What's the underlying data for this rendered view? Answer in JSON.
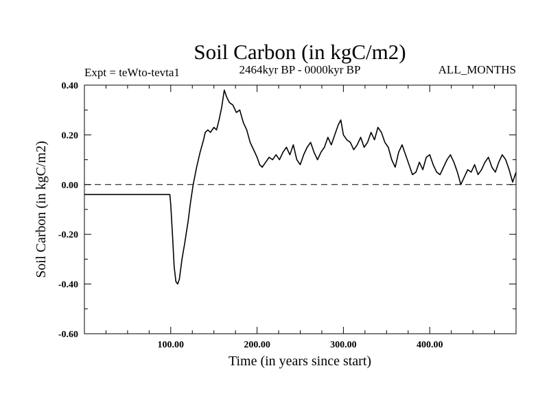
{
  "chart_data": {
    "type": "line",
    "title": "Soil Carbon (in kgC/m2)",
    "subtitle": "2464kyr BP - 0000kyr BP",
    "experiment": "Expt = teWto-tevta1",
    "period": "ALL_MONTHS",
    "xlabel": "Time (in years since start)",
    "ylabel": "Soil Carbon (in kgC/m2)",
    "xlim": [
      0,
      500
    ],
    "ylim": [
      -0.6,
      0.4
    ],
    "x_ticks": [
      {
        "value": 100,
        "label": "100.00"
      },
      {
        "value": 200,
        "label": "200.00"
      },
      {
        "value": 300,
        "label": "300.00"
      },
      {
        "value": 400,
        "label": "400.00"
      }
    ],
    "y_ticks": [
      {
        "value": 0.4,
        "label": "0.40"
      },
      {
        "value": 0.2,
        "label": "0.20"
      },
      {
        "value": 0.0,
        "label": "0.00"
      },
      {
        "value": -0.2,
        "label": "-0.20"
      },
      {
        "value": -0.4,
        "label": "-0.40"
      },
      {
        "value": -0.6,
        "label": "-0.60"
      }
    ],
    "zero_line": {
      "value": 0.0,
      "style": "dashed"
    },
    "series": [
      {
        "name": "Soil Carbon",
        "color": "#000000",
        "x": [
          0,
          50,
          99,
          100,
          102,
          104,
          106,
          108,
          110,
          113,
          116,
          120,
          123,
          126,
          130,
          134,
          138,
          140,
          143,
          146,
          150,
          153,
          156,
          159,
          162,
          165,
          168,
          172,
          176,
          180,
          184,
          188,
          192,
          196,
          200,
          203,
          206,
          210,
          214,
          218,
          222,
          226,
          230,
          234,
          238,
          242,
          246,
          250,
          254,
          258,
          262,
          266,
          270,
          274,
          278,
          282,
          286,
          290,
          294,
          297,
          300,
          304,
          308,
          312,
          316,
          320,
          324,
          328,
          332,
          336,
          340,
          344,
          348,
          352,
          356,
          360,
          364,
          368,
          372,
          376,
          380,
          384,
          388,
          392,
          396,
          400,
          404,
          408,
          412,
          416,
          420,
          424,
          428,
          432,
          436,
          440,
          444,
          448,
          452,
          456,
          460,
          464,
          468,
          472,
          476,
          480,
          484,
          488,
          492,
          496,
          500
        ],
        "y": [
          -0.04,
          -0.04,
          -0.04,
          -0.08,
          -0.2,
          -0.33,
          -0.39,
          -0.4,
          -0.38,
          -0.3,
          -0.24,
          -0.15,
          -0.07,
          0.0,
          0.07,
          0.13,
          0.18,
          0.21,
          0.22,
          0.21,
          0.23,
          0.22,
          0.26,
          0.31,
          0.38,
          0.35,
          0.33,
          0.32,
          0.29,
          0.3,
          0.25,
          0.22,
          0.17,
          0.14,
          0.11,
          0.08,
          0.07,
          0.09,
          0.11,
          0.1,
          0.12,
          0.1,
          0.13,
          0.15,
          0.12,
          0.16,
          0.1,
          0.08,
          0.12,
          0.15,
          0.17,
          0.13,
          0.1,
          0.13,
          0.15,
          0.19,
          0.16,
          0.2,
          0.24,
          0.26,
          0.2,
          0.18,
          0.17,
          0.14,
          0.16,
          0.19,
          0.15,
          0.17,
          0.21,
          0.18,
          0.23,
          0.21,
          0.17,
          0.15,
          0.1,
          0.07,
          0.13,
          0.16,
          0.12,
          0.08,
          0.04,
          0.05,
          0.09,
          0.06,
          0.11,
          0.12,
          0.08,
          0.05,
          0.04,
          0.07,
          0.1,
          0.12,
          0.09,
          0.05,
          0.0,
          0.03,
          0.06,
          0.05,
          0.08,
          0.04,
          0.06,
          0.09,
          0.11,
          0.07,
          0.05,
          0.09,
          0.12,
          0.1,
          0.06,
          0.01,
          0.05
        ]
      }
    ]
  }
}
